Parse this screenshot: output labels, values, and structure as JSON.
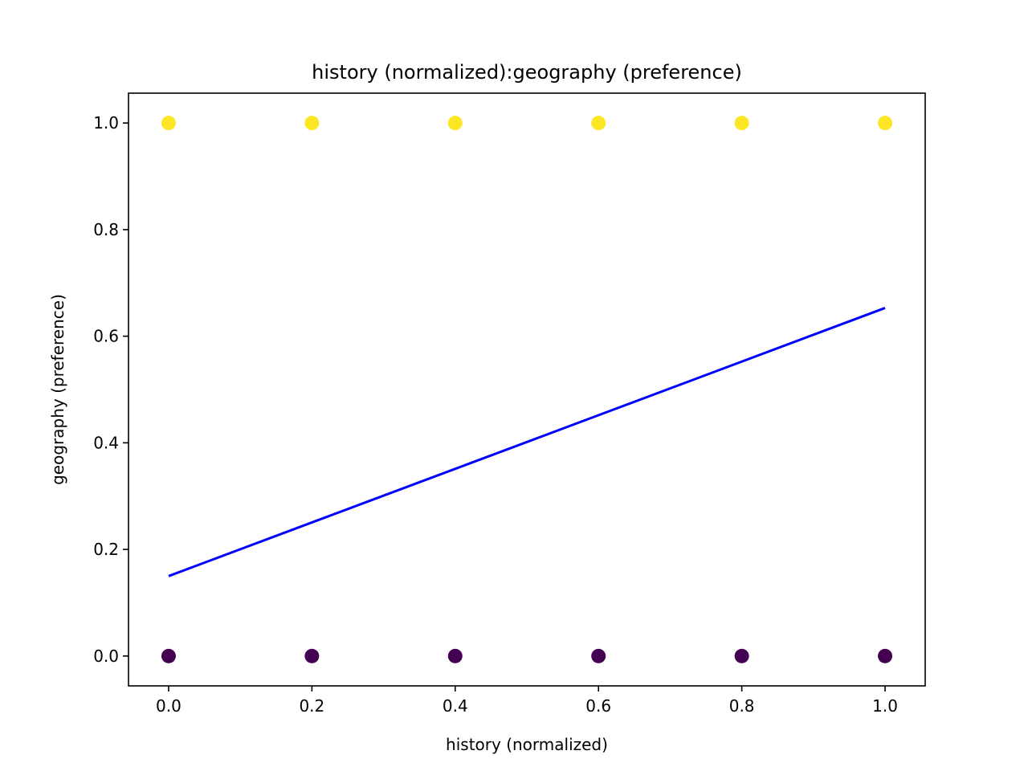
{
  "chart_data": {
    "type": "scatter",
    "title": "history (normalized):geography (preference)",
    "xlabel": "history (normalized)",
    "ylabel": "geography (preference)",
    "xlim": [
      -0.056,
      1.056
    ],
    "ylim": [
      -0.056,
      1.056
    ],
    "x_ticks": [
      "0.0",
      "0.2",
      "0.4",
      "0.6",
      "0.8",
      "1.0"
    ],
    "y_ticks": [
      "0.0",
      "0.2",
      "0.4",
      "0.6",
      "0.8",
      "1.0"
    ],
    "grid": false,
    "points": [
      {
        "x": 0.0,
        "y": 1.0,
        "class": 1
      },
      {
        "x": 0.2,
        "y": 1.0,
        "class": 1
      },
      {
        "x": 0.4,
        "y": 1.0,
        "class": 1
      },
      {
        "x": 0.6,
        "y": 1.0,
        "class": 1
      },
      {
        "x": 0.8,
        "y": 1.0,
        "class": 1
      },
      {
        "x": 1.0,
        "y": 1.0,
        "class": 1
      },
      {
        "x": 0.0,
        "y": 0.0,
        "class": 0
      },
      {
        "x": 0.2,
        "y": 0.0,
        "class": 0
      },
      {
        "x": 0.4,
        "y": 0.0,
        "class": 0
      },
      {
        "x": 0.6,
        "y": 0.0,
        "class": 0
      },
      {
        "x": 0.8,
        "y": 0.0,
        "class": 0
      },
      {
        "x": 1.0,
        "y": 0.0,
        "class": 0
      }
    ],
    "fit_line": {
      "x": [
        0.0,
        1.0
      ],
      "y": [
        0.15,
        0.653
      ]
    },
    "colors": {
      "class_1": "#fde725",
      "class_0": "#440154",
      "fit_line": "#0000ff",
      "axes": "#000000"
    }
  }
}
